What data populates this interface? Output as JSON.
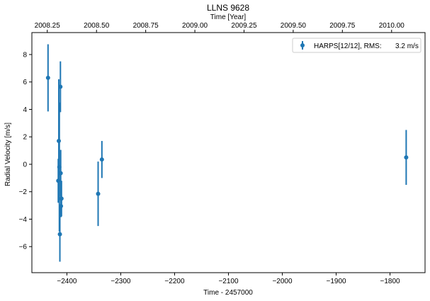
{
  "chart_data": {
    "type": "scatter",
    "title": "LLNS  9628",
    "xlabel": "Time - 2457000",
    "ylabel": "Radial Velocity [m/s]",
    "top_xlabel": "Time [Year]",
    "xlim": [
      -2465,
      -1735
    ],
    "ylim": [
      -7.9,
      9.6
    ],
    "xticks": [
      -2400,
      -2300,
      -2200,
      -2100,
      -2000,
      -1900,
      -1800
    ],
    "yticks": [
      -6,
      -4,
      -2,
      0,
      2,
      4,
      6,
      8
    ],
    "top_ticks": [
      {
        "label": "2008.25",
        "x": -2436.4
      },
      {
        "label": "2008.50",
        "x": -2345.0
      },
      {
        "label": "2008.75",
        "x": -2253.7
      },
      {
        "label": "2009.00",
        "x": -2162.4
      },
      {
        "label": "2009.25",
        "x": -2071.1
      },
      {
        "label": "2009.50",
        "x": -1979.8
      },
      {
        "label": "2009.75",
        "x": -1888.5
      },
      {
        "label": "2010.00",
        "x": -1797.1
      }
    ],
    "grid": false,
    "legend_position": "top-right",
    "series": [
      {
        "name": "HARPS[12/12], RMS:       3.2 m/s",
        "color": "#1f77b4",
        "points": [
          {
            "x": -2435.0,
            "y": 6.3,
            "err": 2.45
          },
          {
            "x": -2416.0,
            "y": -1.2,
            "err": 1.6
          },
          {
            "x": -2415.0,
            "y": 1.7,
            "err": 4.5
          },
          {
            "x": -2414.0,
            "y": -0.2,
            "err": 4.7
          },
          {
            "x": -2413.0,
            "y": -5.1,
            "err": 2.0
          },
          {
            "x": -2412.0,
            "y": 5.65,
            "err": 1.85
          },
          {
            "x": -2411.5,
            "y": -0.65,
            "err": 1.7
          },
          {
            "x": -2411.0,
            "y": -3.05,
            "err": 0.8
          },
          {
            "x": -2410.0,
            "y": -2.5,
            "err": 1.3
          },
          {
            "x": -2342.0,
            "y": -2.15,
            "err": 2.35
          },
          {
            "x": -2335.0,
            "y": 0.35,
            "err": 1.35
          },
          {
            "x": -1770.0,
            "y": 0.5,
            "err": 2.0
          }
        ]
      }
    ]
  }
}
